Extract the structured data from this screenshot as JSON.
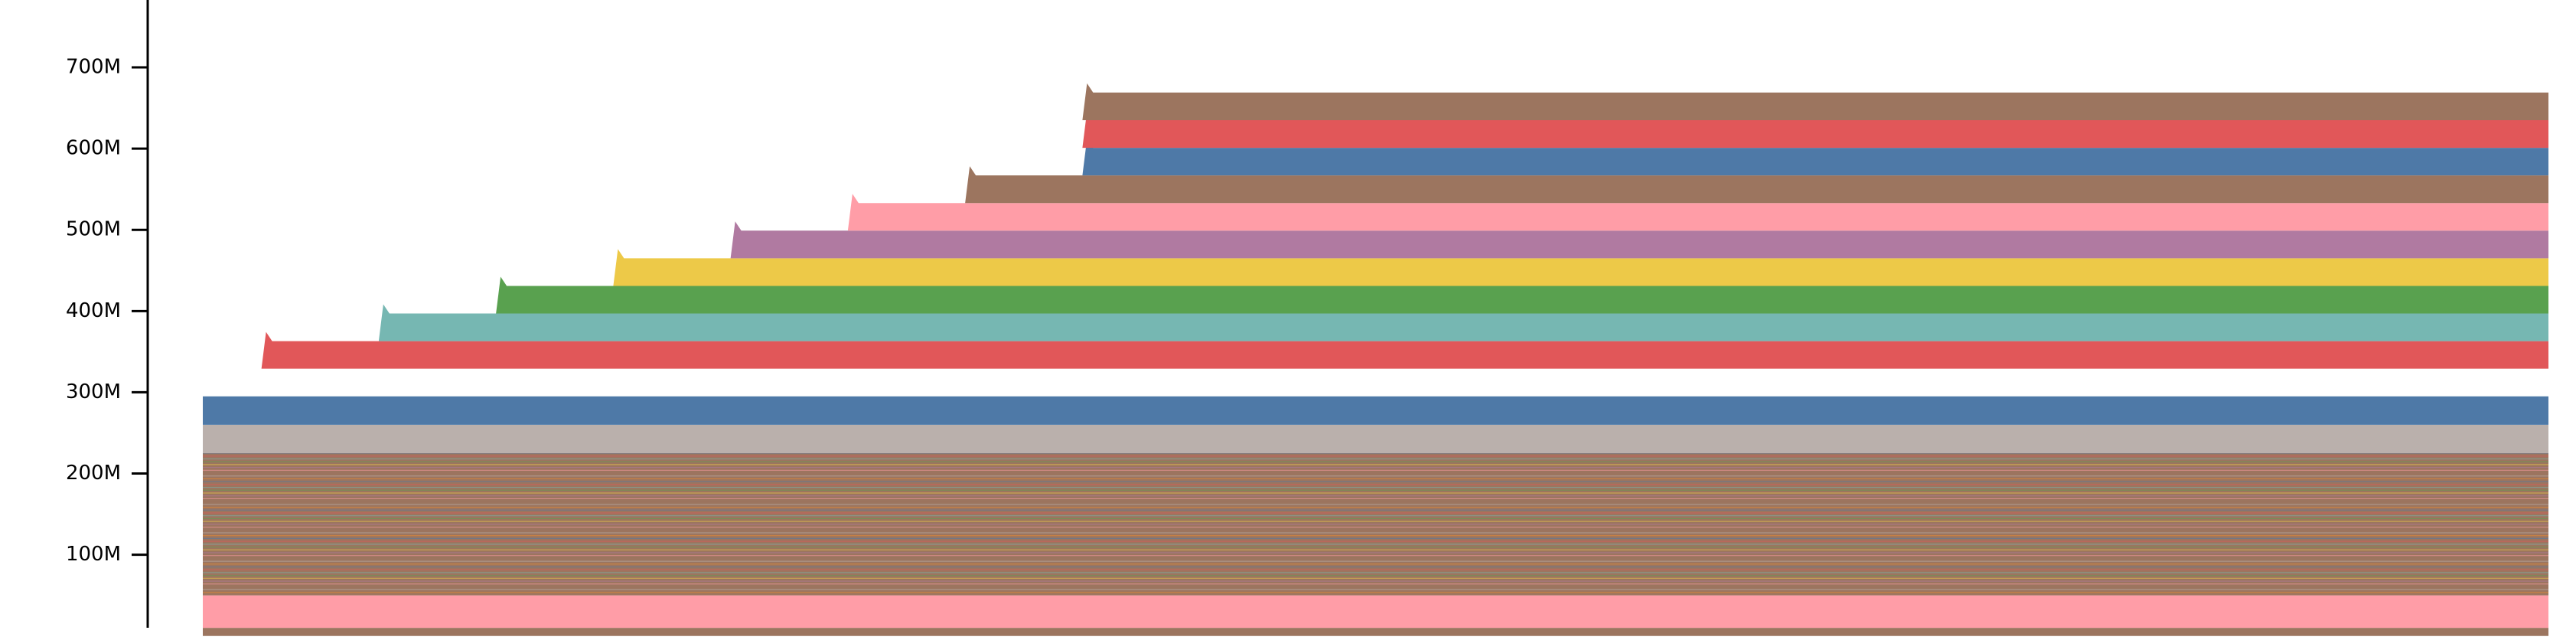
{
  "chart_data": {
    "type": "area",
    "title": "",
    "xlabel": "",
    "ylabel": "",
    "grid": false,
    "legend": "none",
    "ylim": [
      0,
      780000000
    ],
    "y_ticks": [
      {
        "value": 100000000,
        "label": "100M"
      },
      {
        "value": 200000000,
        "label": "200M"
      },
      {
        "value": 300000000,
        "label": "300M"
      },
      {
        "value": 400000000,
        "label": "400M"
      },
      {
        "value": 500000000,
        "label": "500M"
      },
      {
        "value": 600000000,
        "label": "600M"
      },
      {
        "value": 700000000,
        "label": "700M"
      }
    ],
    "x": [
      0,
      1,
      2,
      3,
      4,
      5,
      6,
      7,
      8,
      9,
      10,
      11,
      12,
      13,
      14,
      15,
      16,
      17,
      18,
      19,
      20,
      21,
      22,
      23,
      24,
      25,
      26,
      27,
      28,
      29,
      30,
      31,
      32,
      33,
      34,
      35,
      36,
      37,
      38,
      39,
      40
    ],
    "palette": [
      "#4e79a7",
      "#e15759",
      "#76b7b2",
      "#59a14f",
      "#edc948",
      "#b07aa1",
      "#ff9da7",
      "#9c755f",
      "#bab0ac",
      "#f28e2b"
    ],
    "baseline_series": [
      {
        "name": "",
        "color": "#9c755f",
        "from": 0,
        "to": 40,
        "value": 10000000
      },
      {
        "name": "",
        "color": "#ff9da7",
        "from": 0,
        "to": 40,
        "value": 40000000
      },
      {
        "name": "",
        "color": "#9c755f",
        "from": 0,
        "to": 40,
        "value": 175000000
      },
      {
        "name": "",
        "color": "#bab0ac",
        "from": 0,
        "to": 40,
        "value": 35000000
      },
      {
        "name": "",
        "color": "#4e79a7",
        "from": 0,
        "to": 40,
        "value": 35000000
      }
    ],
    "generations": [
      {
        "color": "#f28e2b",
        "start": 0,
        "value": 0
      },
      {
        "color": "#e15759",
        "start": 1,
        "value": 34000000
      },
      {
        "color": "#76b7b2",
        "start": 3,
        "value": 34000000
      },
      {
        "color": "#59a14f",
        "start": 5,
        "value": 34000000
      },
      {
        "color": "#edc948",
        "start": 7,
        "value": 34000000
      },
      {
        "color": "#b07aa1",
        "start": 9,
        "value": 34000000
      },
      {
        "color": "#ff9da7",
        "start": 11,
        "value": 34000000
      },
      {
        "color": "#9c755f",
        "start": 13,
        "value": 34000000
      },
      {
        "color": "#4e79a7",
        "start": 15,
        "value": 34000000
      },
      {
        "color": "#e15759",
        "start": 15,
        "value": 34000000
      },
      {
        "color": "#9c755f",
        "start": 15,
        "value": 34000000
      }
    ]
  }
}
